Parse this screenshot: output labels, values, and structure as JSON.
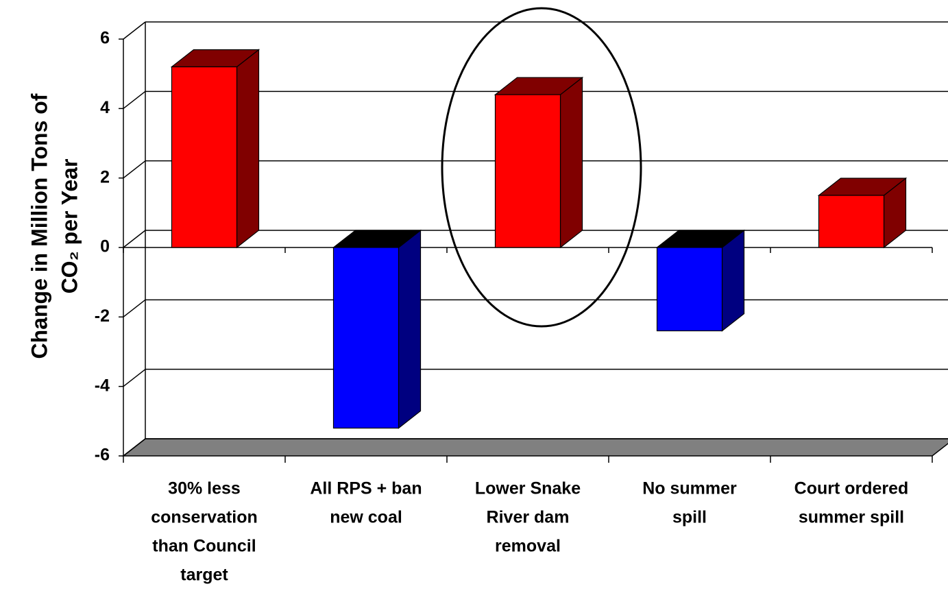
{
  "chart_data": {
    "type": "bar3d",
    "y_label": [
      "Change in Million Tons of",
      "CO₂ per Year"
    ],
    "categories": [
      [
        "30% less",
        "conservation",
        "than Council",
        "target"
      ],
      [
        "All RPS + ban",
        "new coal"
      ],
      [
        "Lower Snake",
        "River dam",
        "removal"
      ],
      [
        "No summer",
        "spill"
      ],
      [
        "Court ordered",
        "summer spill"
      ]
    ],
    "values": [
      5.2,
      -5.2,
      4.4,
      -2.4,
      1.5
    ],
    "colors": [
      "#ff0000",
      "#0000ff",
      "#ff0000",
      "#0000ff",
      "#ff0000"
    ],
    "ylim": [
      -6,
      6
    ],
    "yticks": [
      -6,
      -4,
      -2,
      0,
      2,
      4,
      6
    ],
    "grid": true
  }
}
